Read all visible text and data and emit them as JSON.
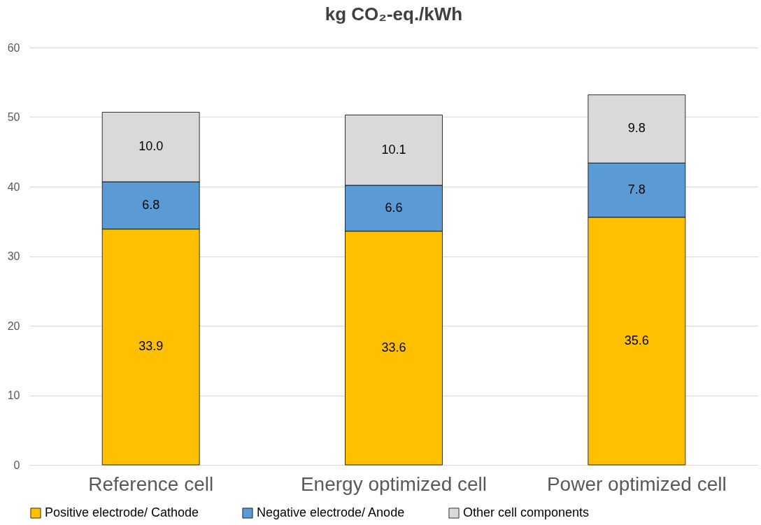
{
  "chart_data": {
    "type": "bar",
    "title": "kg CO₂-eq./kWh",
    "categories": [
      "Reference cell",
      "Energy optimized cell",
      "Power optimized cell"
    ],
    "stacked": true,
    "series": [
      {
        "name": "Positive electrode/ Cathode",
        "color": "#ffc000",
        "values": [
          33.9,
          33.6,
          35.6
        ],
        "value_labels": [
          "33.9",
          "33.6",
          "35.6"
        ]
      },
      {
        "name": "Negative electrode/ Anode",
        "color": "#5b9bd5",
        "values": [
          6.8,
          6.6,
          7.8
        ],
        "value_labels": [
          "6.8",
          "6.6",
          "7.8"
        ]
      },
      {
        "name": "Other cell components",
        "color": "#d9d9d9",
        "values": [
          10.0,
          10.1,
          9.8
        ],
        "value_labels": [
          "10.0",
          "10.1",
          "9.8"
        ]
      }
    ],
    "ylim": [
      0,
      60
    ],
    "yticks": [
      0,
      10,
      20,
      30,
      40,
      50,
      60
    ],
    "grid": "y",
    "legend": "bottom"
  }
}
